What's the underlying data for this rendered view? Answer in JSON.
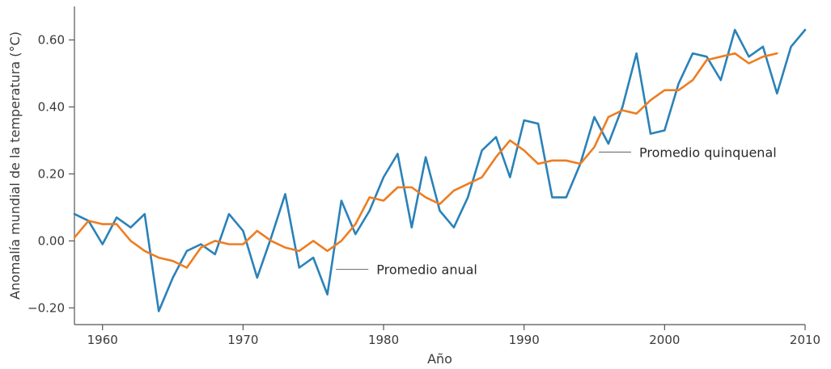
{
  "chart_data": {
    "type": "line",
    "title": "",
    "xlabel": "Año",
    "ylabel": "Anomalía mundial de la temperatura (°C)",
    "xlim": [
      1958,
      2010
    ],
    "ylim": [
      -0.25,
      0.7
    ],
    "x_ticks": [
      1960,
      1970,
      1980,
      1990,
      2000,
      2010
    ],
    "x_tick_labels": [
      "1960",
      "1970",
      "1980",
      "1990",
      "2000",
      "2010"
    ],
    "y_ticks": [
      -0.2,
      0.0,
      0.2,
      0.4,
      0.6
    ],
    "y_tick_labels": [
      "−0.20",
      "0.00",
      "0.20",
      "0.40",
      "0.60"
    ],
    "grid": false,
    "series": [
      {
        "name": "Promedio anual",
        "color": "#2a82b8",
        "x": [
          1958,
          1959,
          1960,
          1961,
          1962,
          1963,
          1964,
          1965,
          1966,
          1967,
          1968,
          1969,
          1970,
          1971,
          1972,
          1973,
          1974,
          1975,
          1976,
          1977,
          1978,
          1979,
          1980,
          1981,
          1982,
          1983,
          1984,
          1985,
          1986,
          1987,
          1988,
          1989,
          1990,
          1991,
          1992,
          1993,
          1994,
          1995,
          1996,
          1997,
          1998,
          1999,
          2000,
          2001,
          2002,
          2003,
          2004,
          2005,
          2006,
          2007,
          2008,
          2009,
          2010
        ],
        "y": [
          0.08,
          0.06,
          -0.01,
          0.07,
          0.04,
          0.08,
          -0.21,
          -0.11,
          -0.03,
          -0.01,
          -0.04,
          0.08,
          0.03,
          -0.11,
          0.01,
          0.14,
          -0.08,
          -0.05,
          -0.16,
          0.12,
          0.02,
          0.09,
          0.19,
          0.26,
          0.04,
          0.25,
          0.09,
          0.04,
          0.13,
          0.27,
          0.31,
          0.19,
          0.36,
          0.35,
          0.13,
          0.13,
          0.23,
          0.37,
          0.29,
          0.4,
          0.56,
          0.32,
          0.33,
          0.47,
          0.56,
          0.55,
          0.48,
          0.63,
          0.55,
          0.58,
          0.44,
          0.58,
          0.63
        ]
      },
      {
        "name": "Promedio quinquenal",
        "color": "#ee7d22",
        "x": [
          1958,
          1959,
          1960,
          1961,
          1962,
          1963,
          1964,
          1965,
          1966,
          1967,
          1968,
          1969,
          1970,
          1971,
          1972,
          1973,
          1974,
          1975,
          1976,
          1977,
          1978,
          1979,
          1980,
          1981,
          1982,
          1983,
          1984,
          1985,
          1986,
          1987,
          1988,
          1989,
          1990,
          1991,
          1992,
          1993,
          1994,
          1995,
          1996,
          1997,
          1998,
          1999,
          2000,
          2001,
          2002,
          2003,
          2004,
          2005,
          2006,
          2007,
          2008
        ],
        "y": [
          0.01,
          0.06,
          0.05,
          0.05,
          0.0,
          -0.03,
          -0.05,
          -0.06,
          -0.08,
          -0.02,
          0.0,
          -0.01,
          -0.01,
          0.03,
          0.0,
          -0.02,
          -0.03,
          0.0,
          -0.03,
          0.0,
          0.05,
          0.13,
          0.12,
          0.16,
          0.16,
          0.13,
          0.11,
          0.15,
          0.17,
          0.19,
          0.25,
          0.3,
          0.27,
          0.23,
          0.24,
          0.24,
          0.23,
          0.28,
          0.37,
          0.39,
          0.38,
          0.42,
          0.45,
          0.45,
          0.48,
          0.54,
          0.55,
          0.56,
          0.53,
          0.55,
          0.56
        ]
      }
    ],
    "annotations": [
      {
        "text": "Promedio anual",
        "series": "Promedio anual",
        "anchor_x": 1976.5,
        "anchor_y": -0.085
      },
      {
        "text": "Promedio quinquenal",
        "series": "Promedio quinquenal",
        "anchor_x": 1995.2,
        "anchor_y": 0.265
      }
    ]
  }
}
